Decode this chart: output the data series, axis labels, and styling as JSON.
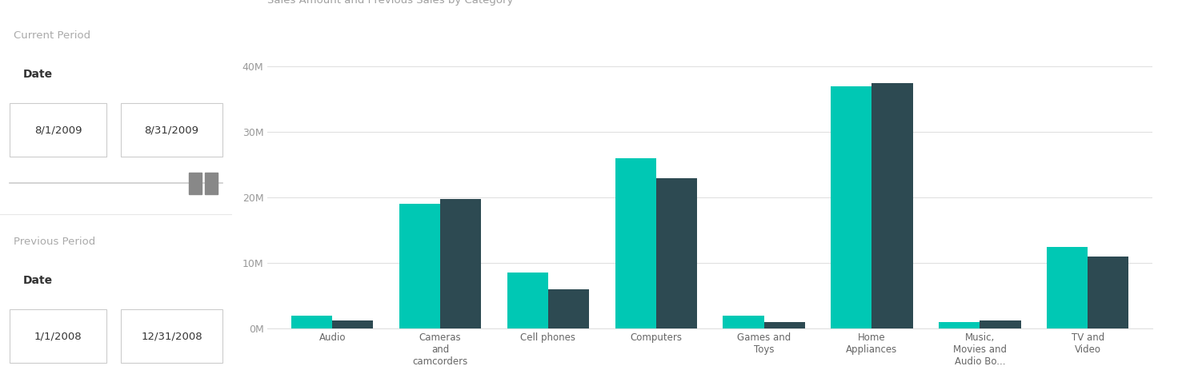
{
  "title": "Sales Amount and Previous Sales by Category",
  "bg_color": "#ffffff",
  "categories": [
    "Audio",
    "Cameras\nand\ncamcorders",
    "Cell phones",
    "Computers",
    "Games and\nToys",
    "Home\nAppliances",
    "Music,\nMovies and\nAudio Bo...",
    "TV and\nVideo"
  ],
  "sales_amount": [
    2000000,
    19000000,
    8500000,
    26000000,
    2000000,
    37000000,
    1000000,
    12500000
  ],
  "previous_sales": [
    1200000,
    19800000,
    6000000,
    23000000,
    1000000,
    37500000,
    1200000,
    11000000
  ],
  "sales_color": "#00c8b4",
  "prev_color": "#2d4a52",
  "ylabel_ticks": [
    0,
    10000000,
    20000000,
    30000000,
    40000000
  ],
  "ylabel_labels": [
    "0M",
    "10M",
    "20M",
    "30M",
    "40M"
  ],
  "ylim": [
    0,
    42000000
  ],
  "legend_sales": "Sales Amount",
  "legend_prev": "Previous Sales",
  "title_color": "#a0a0a0",
  "tick_color": "#999999",
  "grid_color": "#e0e0e0",
  "bg_color_left": "#ffffff",
  "current_period_label": "Current Period",
  "current_date_label": "Date",
  "current_date_from": "8/1/2009",
  "current_date_to": "8/31/2009",
  "previous_period_label": "Previous Period",
  "previous_date_label": "Date",
  "previous_date_from": "1/1/2008",
  "previous_date_to": "12/31/2008",
  "label_color": "#aaaaaa",
  "date_label_color": "#333333",
  "box_border_color": "#cccccc",
  "slider_color": "#888888",
  "slider_track_color": "#cccccc",
  "xtick_color": "#666666"
}
